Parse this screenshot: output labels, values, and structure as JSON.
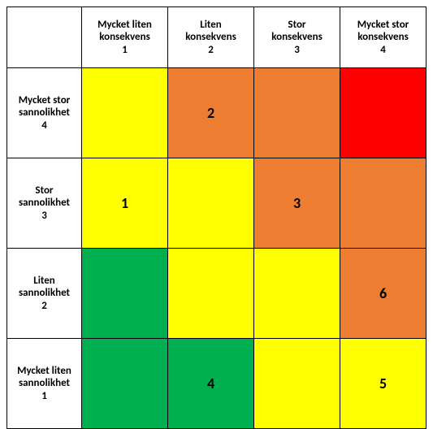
{
  "matrix": {
    "type": "heatmap",
    "background_color": "#ffffff",
    "border_color": "#000000",
    "header_font_size_pt": 10,
    "header_font_weight": "bold",
    "cell_font_size_pt": 14,
    "cell_font_weight": "bold",
    "colors": {
      "green": "#00b050",
      "yellow": "#ffff00",
      "orange": "#ed7d31",
      "red": "#ff0000",
      "white": "#ffffff"
    },
    "columns": [
      {
        "l1": "Mycket liten",
        "l2": "konsekvens",
        "l3": "1"
      },
      {
        "l1": "Liten",
        "l2": "konsekvens",
        "l3": "2"
      },
      {
        "l1": "Stor",
        "l2": "konsekvens",
        "l3": "3"
      },
      {
        "l1": "Mycket stor",
        "l2": "konsekvens",
        "l3": "4"
      }
    ],
    "rows": [
      {
        "l1": "Mycket stor",
        "l2": "sannolikhet",
        "l3": "4",
        "cells": [
          {
            "color": "yellow",
            "value": ""
          },
          {
            "color": "orange",
            "value": "2"
          },
          {
            "color": "orange",
            "value": ""
          },
          {
            "color": "red",
            "value": ""
          }
        ]
      },
      {
        "l1": "Stor",
        "l2": "sannolikhet",
        "l3": "3",
        "cells": [
          {
            "color": "yellow",
            "value": "1"
          },
          {
            "color": "yellow",
            "value": ""
          },
          {
            "color": "orange",
            "value": "3"
          },
          {
            "color": "orange",
            "value": ""
          }
        ]
      },
      {
        "l1": "Liten",
        "l2": "sannolikhet",
        "l3": "2",
        "cells": [
          {
            "color": "green",
            "value": ""
          },
          {
            "color": "yellow",
            "value": ""
          },
          {
            "color": "yellow",
            "value": ""
          },
          {
            "color": "orange",
            "value": "6"
          }
        ]
      },
      {
        "l1": "Mycket liten",
        "l2": "sannolikhet",
        "l3": "1",
        "cells": [
          {
            "color": "green",
            "value": ""
          },
          {
            "color": "green",
            "value": "4"
          },
          {
            "color": "yellow",
            "value": ""
          },
          {
            "color": "yellow",
            "value": "5"
          }
        ]
      }
    ]
  }
}
